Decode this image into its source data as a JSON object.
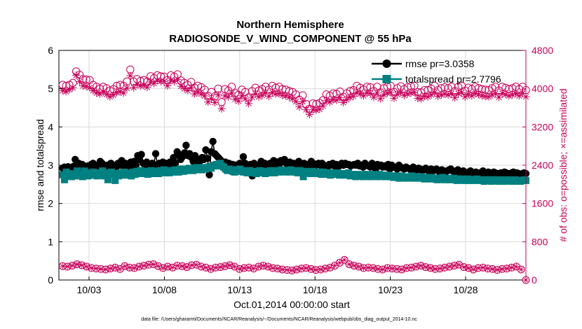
{
  "chart_data": {
    "type": "line",
    "title": "Northern Hemisphere",
    "subtitle": "RADIOSONDE_V_WIND_COMPONENT @ 55 hPa",
    "xlabel": "Oct.01,2014 00:00:00 start",
    "ylabel_left": "rmse and totalspread",
    "ylabel_right": "# of obs: o=possible; ×=assimilated",
    "footnote": "data file: /Users/gharamti/Documents/NCAR/Reanalysis/~/Documents/NCAR/Reanalysis/webpub/obs_diag_output_2014-10.nc",
    "x_ticks": [
      "10/03",
      "10/08",
      "10/13",
      "10/18",
      "10/23",
      "10/28"
    ],
    "x_tick_days": [
      3,
      8,
      13,
      18,
      23,
      28
    ],
    "xlim_days": [
      1.0,
      32.0
    ],
    "ylim_left": [
      0,
      6
    ],
    "y_ticks_left": [
      "0",
      "1",
      "2",
      "3",
      "4",
      "5",
      "6"
    ],
    "ylim_right": [
      0,
      4800
    ],
    "y_ticks_right": [
      "0",
      "800",
      "1600",
      "2400",
      "3200",
      "4000",
      "4800"
    ],
    "grid": true,
    "legend_position": "top-right",
    "colors": {
      "rmse": "#000000",
      "totalspread": "#008080",
      "obs": "#c8005a",
      "axis": "#000000",
      "right_axis": "#c8005a",
      "grid": "#d9d9d9"
    },
    "x_day_step": 0.25,
    "x_start_day": 1.25,
    "series": [
      {
        "name": "rmse",
        "legend": "rmse pr=3.0358",
        "axis": "left",
        "values": [
          2.92,
          2.95,
          2.88,
          2.96,
          2.9,
          2.93,
          2.97,
          3.15,
          2.95,
          3.05,
          2.85,
          3.02,
          2.72,
          2.95,
          2.98,
          2.9,
          3.02,
          3.05,
          3.0,
          2.95,
          2.98,
          3.1,
          3.05,
          2.9,
          2.95,
          3.0,
          2.92,
          3.05,
          3.0,
          2.98,
          2.96,
          3.05,
          3.0,
          3.12,
          2.98,
          3.05,
          2.95,
          3.02,
          3.08,
          2.98,
          3.1,
          3.0,
          3.25,
          3.15,
          3.28,
          3.05,
          3.0,
          3.08,
          3.02,
          2.96,
          3.05,
          3.02,
          3.3,
          3.0,
          3.05,
          2.98,
          3.08,
          3.0,
          3.05,
          3.0,
          3.08,
          3.02,
          3.2,
          3.05,
          3.35,
          3.28,
          3.15,
          3.22,
          3.32,
          3.52,
          3.25,
          3.3,
          3.2,
          3.1,
          3.25,
          3.05,
          3.15,
          3.12,
          3.2,
          3.15,
          3.4,
          3.18,
          2.75,
          3.35,
          3.62,
          3.3,
          3.25,
          3.2,
          3.15,
          3.1,
          3.05,
          3.08,
          3.0,
          3.05,
          2.95,
          3.02,
          2.98,
          3.0,
          2.95,
          3.05,
          3.0,
          3.22,
          3.05,
          2.98,
          3.0,
          3.02,
          2.72,
          3.05,
          3.0,
          2.98,
          3.02,
          3.1,
          3.0,
          3.05,
          2.98,
          3.02,
          3.05,
          3.0,
          3.12,
          3.02,
          3.08,
          3.0,
          3.12,
          3.1,
          3.15,
          3.05,
          3.02,
          3.08,
          3.0,
          3.05,
          2.95,
          3.05,
          3.1,
          2.98,
          3.02,
          3.05,
          2.95,
          3.02,
          3.0,
          3.1,
          3.05,
          2.98,
          3.02,
          3.05,
          3.0,
          3.05,
          3.0,
          2.98,
          2.95,
          3.02,
          3.0,
          3.05,
          2.98,
          3.02,
          2.95,
          3.0,
          3.05,
          3.0,
          3.05,
          3.02,
          3.02,
          2.98,
          3.0,
          3.02,
          3.0,
          3.05,
          2.98,
          3.0,
          2.95,
          3.05,
          3.0,
          2.98,
          2.95,
          3.05,
          3.0,
          2.9,
          3.02,
          2.98,
          3.0,
          2.95,
          2.98,
          2.95,
          3.02,
          2.9,
          3.0,
          2.95,
          2.95,
          2.9,
          3.0,
          2.95,
          2.92,
          2.9,
          2.95,
          2.92,
          2.9,
          2.85,
          2.95,
          2.9,
          2.88,
          2.92,
          2.9,
          2.85,
          2.88,
          2.92,
          2.88,
          2.82,
          2.9,
          2.85,
          2.88,
          2.9,
          2.85,
          2.8,
          2.88,
          2.85,
          2.82,
          2.85,
          2.88,
          2.9,
          2.85,
          2.82,
          2.85,
          2.88,
          2.8,
          2.82,
          2.85,
          2.8,
          2.78,
          2.82,
          2.85,
          2.8,
          2.78,
          2.82,
          2.78,
          2.8,
          2.78,
          2.85,
          2.8,
          2.78,
          2.82,
          2.8,
          2.78,
          2.82,
          2.8,
          2.78,
          2.76,
          2.8,
          2.78,
          2.82,
          2.8,
          2.78,
          2.76,
          2.8,
          2.82,
          2.78,
          2.8,
          2.78,
          2.76,
          2.78,
          2.8,
          2.78
        ]
      },
      {
        "name": "totalspread",
        "legend": "totalspread pr=2.7796",
        "axis": "left",
        "values": [
          2.75,
          2.62,
          2.82,
          2.72,
          2.76,
          2.7,
          2.78,
          2.72,
          2.85,
          2.74,
          2.78,
          2.7,
          2.85,
          2.76,
          2.72,
          2.8,
          2.74,
          2.82,
          2.76,
          2.72,
          2.8,
          2.75,
          2.85,
          2.72,
          2.8,
          2.62,
          2.78,
          2.82,
          2.76,
          2.6,
          2.78,
          2.72,
          2.8,
          2.76,
          2.82,
          2.74,
          2.78,
          2.8,
          2.72,
          2.82,
          2.76,
          2.84,
          2.78,
          2.86,
          2.8,
          2.78,
          2.84,
          2.76,
          2.8,
          2.86,
          2.78,
          2.84,
          2.8,
          2.78,
          2.86,
          2.82,
          2.88,
          2.8,
          2.84,
          2.8,
          2.86,
          2.82,
          2.88,
          2.84,
          2.82,
          2.9,
          2.86,
          2.84,
          2.9,
          2.86,
          2.92,
          2.88,
          2.86,
          2.9,
          2.94,
          2.88,
          2.92,
          2.88,
          2.94,
          2.9,
          2.92,
          2.96,
          2.92,
          2.98,
          3.0,
          3.02,
          2.98,
          3.05,
          2.98,
          2.95,
          2.9,
          2.86,
          2.9,
          2.88,
          2.84,
          2.82,
          2.88,
          2.84,
          2.9,
          2.86,
          2.82,
          2.84,
          2.8,
          2.86,
          2.82,
          2.8,
          2.84,
          2.78,
          2.82,
          2.86,
          2.8,
          2.84,
          2.78,
          2.82,
          2.8,
          2.86,
          2.82,
          2.8,
          2.84,
          2.86,
          2.82,
          2.88,
          2.84,
          2.86,
          2.82,
          2.84,
          2.88,
          2.86,
          2.82,
          2.84,
          2.8,
          2.86,
          2.82,
          2.7,
          2.84,
          2.8,
          2.82,
          2.78,
          2.84,
          2.8,
          2.82,
          2.78,
          2.8,
          2.76,
          2.82,
          2.78,
          2.8,
          2.76,
          2.74,
          2.8,
          2.78,
          2.76,
          2.8,
          2.74,
          2.78,
          2.76,
          2.74,
          2.78,
          2.8,
          2.72,
          2.76,
          2.74,
          2.7,
          2.76,
          2.72,
          2.74,
          2.7,
          2.76,
          2.72,
          2.74,
          2.7,
          2.76,
          2.72,
          2.74,
          2.7,
          2.76,
          2.72,
          2.74,
          2.7,
          2.72,
          2.74,
          2.7,
          2.72,
          2.68,
          2.72,
          2.7,
          2.66,
          2.72,
          2.7,
          2.68,
          2.66,
          2.7,
          2.68,
          2.72,
          2.66,
          2.7,
          2.68,
          2.66,
          2.7,
          2.68,
          2.64,
          2.68,
          2.66,
          2.64,
          2.68,
          2.66,
          2.64,
          2.62,
          2.66,
          2.64,
          2.68,
          2.62,
          2.64,
          2.66,
          2.62,
          2.64,
          2.66,
          2.62,
          2.6,
          2.64,
          2.62,
          2.64,
          2.6,
          2.62,
          2.64,
          2.6,
          2.62,
          2.6,
          2.62,
          2.64,
          2.6,
          2.62,
          2.6,
          2.58,
          2.62,
          2.6,
          2.62,
          2.58,
          2.6,
          2.62,
          2.6,
          2.58,
          2.62,
          2.6,
          2.58,
          2.6,
          2.62,
          2.6,
          2.58,
          2.6,
          2.62,
          2.58,
          2.6,
          2.58,
          2.6,
          2.62,
          2.6
        ]
      },
      {
        "name": "obs_possible",
        "axis": "right",
        "marker": "open-circle",
        "values": [
          4080,
          4060,
          4080,
          4120,
          4360,
          4290,
          4200,
          4190,
          4180,
          4080,
          4040,
          4000,
          4040,
          4010,
          3960,
          3990,
          4060,
          4080,
          4060,
          4150,
          4400,
          4150,
          4200,
          4160,
          4180,
          4150,
          4260,
          4220,
          4280,
          4260,
          4250,
          4180,
          4280,
          4250,
          4300,
          4170,
          4120,
          4080,
          4140,
          4020,
          4060,
          4030,
          3980,
          3850,
          3930,
          3840,
          4000,
          3720,
          3990,
          3960,
          4040,
          3910,
          3870,
          3980,
          3930,
          3820,
          3950,
          4020,
          3960,
          3990,
          4040,
          3980,
          4060,
          4020,
          4040,
          3990,
          3980,
          3950,
          3930,
          3880,
          3770,
          3860,
          3680,
          3580,
          3690,
          3680,
          3700,
          3760,
          3880,
          3850,
          3900,
          3890,
          3940,
          3830,
          3900,
          3950,
          3970,
          4060,
          4020,
          3980,
          4040,
          4030,
          3950,
          4040,
          3920,
          4010,
          4040,
          4060,
          3930,
          4010,
          4050,
          3990,
          4030,
          4050,
          4060,
          3930,
          3920,
          3970,
          3970,
          4000,
          4060,
          3970,
          4010,
          4030,
          4010,
          4040,
          3950,
          4040,
          4060,
          3960,
          4020,
          3990,
          4040,
          4010,
          3990,
          3980,
          3970,
          4010,
          4040,
          3960,
          4040,
          4020,
          3990,
          4010,
          4040,
          3990,
          4040,
          3970
        ]
      },
      {
        "name": "obs_assimilated",
        "axis": "right",
        "marker": "asterisk",
        "values": [
          3960,
          3940,
          3980,
          4020,
          4280,
          4150,
          4060,
          4050,
          4020,
          3960,
          3910,
          3890,
          3930,
          3880,
          3830,
          3870,
          3920,
          3940,
          3910,
          4010,
          4270,
          4020,
          4090,
          4060,
          4070,
          4030,
          4140,
          4110,
          4170,
          4150,
          4150,
          4060,
          4170,
          4150,
          4190,
          4050,
          4000,
          3960,
          4020,
          3890,
          3930,
          3890,
          3850,
          3720,
          3790,
          3710,
          3870,
          3580,
          3850,
          3830,
          3910,
          3780,
          3740,
          3850,
          3790,
          3690,
          3820,
          3890,
          3830,
          3860,
          3910,
          3840,
          3920,
          3890,
          3900,
          3860,
          3850,
          3820,
          3790,
          3730,
          3620,
          3730,
          3560,
          3460,
          3560,
          3550,
          3570,
          3640,
          3750,
          3720,
          3770,
          3760,
          3810,
          3710,
          3770,
          3820,
          3840,
          3920,
          3890,
          3850,
          3910,
          3900,
          3820,
          3910,
          3790,
          3870,
          3910,
          3920,
          3800,
          3880,
          3920,
          3860,
          3890,
          3910,
          3920,
          3800,
          3790,
          3840,
          3830,
          3870,
          3920,
          3840,
          3870,
          3890,
          3870,
          3900,
          3810,
          3900,
          3920,
          3830,
          3880,
          3850,
          3900,
          3880,
          3850,
          3840,
          3830,
          3870,
          3900,
          3820,
          3900,
          3880,
          3850,
          3870,
          3900,
          3850,
          3900,
          3830
        ]
      },
      {
        "name": "obs_low_possible",
        "axis": "right",
        "marker": "circle-plus",
        "values": [
          290,
          280,
          300,
          330,
          310,
          280,
          250,
          240,
          230,
          220,
          240,
          260,
          230,
          290,
          260,
          250,
          280,
          300,
          320,
          330,
          290,
          250,
          280,
          260,
          300,
          290,
          270,
          310,
          320,
          280,
          260,
          230,
          260,
          270,
          290,
          310,
          280,
          230,
          250,
          260,
          240,
          280,
          300,
          280,
          250,
          240,
          220,
          210,
          200,
          220,
          240,
          250,
          230,
          210,
          220,
          240,
          260,
          300,
          360,
          420,
          330,
          300,
          280,
          250,
          260,
          250,
          230,
          220,
          250,
          240,
          230,
          220,
          250,
          260,
          280,
          300,
          270,
          250,
          230,
          240,
          260,
          280,
          300,
          320,
          270,
          250,
          220,
          250,
          260,
          240,
          230,
          210,
          230,
          240,
          260,
          280,
          220,
          0
        ]
      }
    ]
  }
}
